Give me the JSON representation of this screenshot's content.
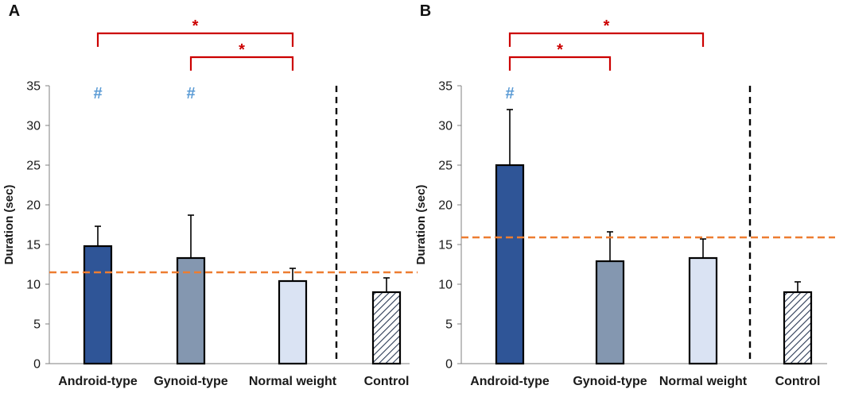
{
  "colors": {
    "android": "#2f5597",
    "gynoid": "#8497b0",
    "normal": "#dae3f3",
    "control": "#ffffff",
    "reference_line": "#ed7d31",
    "significance": "#cc0000",
    "hash": "#5b9bd5"
  },
  "chart_data": [
    {
      "type": "bar",
      "panel_label": "A",
      "ylabel": "Duration (sec)",
      "ylim": [
        0,
        35
      ],
      "yticks": [
        "0",
        "5",
        "10",
        "15",
        "20",
        "25",
        "30",
        "35"
      ],
      "categories": [
        "Android-type",
        "Gynoid-type",
        "Normal weight",
        "Control"
      ],
      "values": [
        14.8,
        13.3,
        10.4,
        9.0
      ],
      "error_upper": [
        2.5,
        5.4,
        1.6,
        1.8
      ],
      "reference_line": 11.5,
      "hash_marks": [
        {
          "category_index": 0,
          "symbol": "#"
        },
        {
          "category_index": 1,
          "symbol": "#"
        }
      ],
      "significance": [
        {
          "from": 0,
          "to": 2,
          "symbol": "*"
        },
        {
          "from": 1,
          "to": 2,
          "symbol": "*"
        }
      ]
    },
    {
      "type": "bar",
      "panel_label": "B",
      "ylabel": "Duration (sec)",
      "ylim": [
        0,
        35
      ],
      "yticks": [
        "0",
        "5",
        "10",
        "15",
        "20",
        "25",
        "30",
        "35"
      ],
      "categories": [
        "Android-type",
        "Gynoid-type",
        "Normal weight",
        "Control"
      ],
      "values": [
        25.0,
        12.9,
        13.3,
        9.0
      ],
      "error_upper": [
        7.0,
        3.7,
        2.4,
        1.3
      ],
      "reference_line": 15.9,
      "hash_marks": [
        {
          "category_index": 0,
          "symbol": "#"
        }
      ],
      "significance": [
        {
          "from": 0,
          "to": 2,
          "symbol": "*"
        },
        {
          "from": 0,
          "to": 1,
          "symbol": "*"
        }
      ]
    }
  ]
}
